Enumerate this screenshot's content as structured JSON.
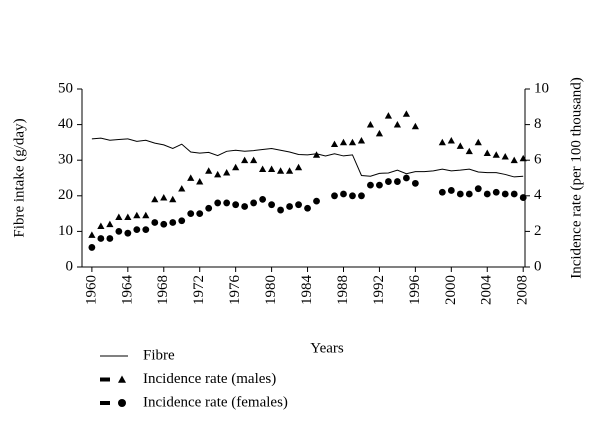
{
  "chart_data": {
    "type": "line",
    "x_label": "Years",
    "y_label": "Fibre intake (g/day)",
    "y2_label": "Incidence rate (per 100 thousand)",
    "x": [
      1960,
      1961,
      1962,
      1963,
      1964,
      1965,
      1966,
      1967,
      1968,
      1969,
      1970,
      1971,
      1972,
      1973,
      1974,
      1975,
      1976,
      1977,
      1978,
      1979,
      1980,
      1981,
      1982,
      1983,
      1984,
      1985,
      1986,
      1987,
      1988,
      1989,
      1990,
      1991,
      1992,
      1993,
      1994,
      1995,
      1996,
      1997,
      1998,
      1999,
      2000,
      2001,
      2002,
      2003,
      2004,
      2005,
      2006,
      2007,
      2008
    ],
    "series": [
      {
        "name": "Fibre",
        "color": "#000000",
        "style": "line",
        "values": [
          36,
          36.2,
          35.6,
          35.8,
          36,
          35.3,
          35.6,
          34.8,
          34.3,
          33.3,
          34.5,
          32.3,
          32,
          32.2,
          31.3,
          32.5,
          32.8,
          32.5,
          32.7,
          33,
          33.3,
          32.8,
          32.3,
          31.6,
          31.5,
          31.8,
          31.2,
          31.8,
          31.2,
          31.5,
          25.7,
          25.5,
          26.3,
          26.4,
          27.2,
          26.2,
          26.8,
          26.8,
          27,
          27.5,
          27,
          27.2,
          27.5,
          26.7,
          26.5,
          26.5,
          26,
          25.3,
          25.5
        ]
      },
      {
        "name": "Incidence rate (males)",
        "color": "#000000",
        "style": "triangle",
        "axis": "y2",
        "values": [
          1.8,
          2.3,
          2.4,
          2.8,
          2.8,
          2.9,
          2.9,
          3.8,
          3.9,
          3.8,
          4.4,
          5,
          4.8,
          5.4,
          5.2,
          5.3,
          5.6,
          6,
          6,
          5.5,
          5.5,
          5.4,
          5.4,
          5.6,
          null,
          6.3,
          null,
          6.9,
          7,
          7,
          7.1,
          8,
          7.5,
          8.5,
          8,
          8.6,
          7.9,
          null,
          null,
          7,
          7.1,
          6.8,
          6.5,
          7,
          6.4,
          6.3,
          6.2,
          6,
          6.1
        ]
      },
      {
        "name": "Incidence rate (females)",
        "color": "#000000",
        "style": "circle",
        "axis": "y2",
        "values": [
          1.1,
          1.6,
          1.6,
          2,
          1.9,
          2.1,
          2.1,
          2.5,
          2.4,
          2.5,
          2.6,
          3,
          3,
          3.3,
          3.6,
          3.6,
          3.5,
          3.4,
          3.6,
          3.8,
          3.5,
          3.2,
          3.4,
          3.5,
          3.3,
          3.7,
          null,
          4,
          4.1,
          4,
          4,
          4.6,
          4.6,
          4.8,
          4.8,
          5,
          4.7,
          null,
          null,
          4.2,
          4.3,
          4.1,
          4.1,
          4.4,
          4.1,
          4.2,
          4.1,
          4.1,
          3.9
        ]
      }
    ],
    "xlim": [
      1958.9,
      2008.2
    ],
    "xticks": [
      1960,
      1964,
      1968,
      1972,
      1976,
      1980,
      1984,
      1988,
      1992,
      1996,
      2000,
      2004,
      2008
    ],
    "ylim": [
      0,
      50
    ],
    "yticks": [
      0,
      10,
      20,
      30,
      40,
      50
    ],
    "y2lim": [
      0,
      10
    ],
    "y2ticks": [
      0,
      2,
      4,
      6,
      8,
      10
    ]
  }
}
